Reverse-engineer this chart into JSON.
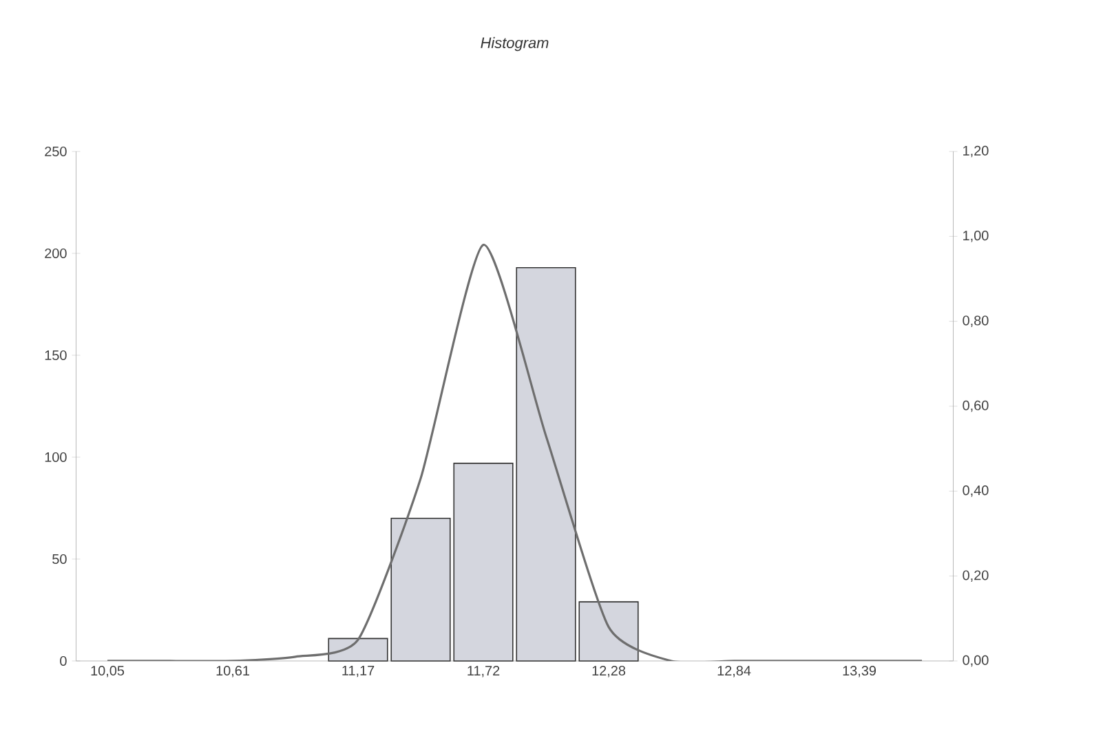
{
  "chart_data": {
    "type": "bar",
    "title": "*Histogram*",
    "categories": [
      "10,05",
      null,
      "10,61",
      null,
      "11,17",
      null,
      "11,72",
      null,
      "12,28",
      null,
      "12,84",
      null,
      "13,39",
      null
    ],
    "series": [
      {
        "color": "#d4d6de",
        "values": [
          null,
          null,
          null,
          null,
          11,
          70,
          97,
          193,
          29,
          null,
          null,
          null,
          null,
          null
        ]
      },
      {
        "type": "line",
        "axis": "y2",
        "color": "#6e6e6e",
        "values": [
          0,
          0,
          0,
          0.01,
          0.05,
          0.43,
          0.98,
          0.53,
          0.08,
          0,
          0,
          0,
          0,
          0
        ]
      }
    ],
    "ylim": [
      0,
      250
    ],
    "yticks": [
      0,
      50,
      100,
      150,
      200,
      250
    ],
    "y2lim": [
      0,
      1.2
    ],
    "y2ticks": [
      {
        "value": 0,
        "label": "0,00"
      },
      {
        "value": 0.2,
        "label": "0,20"
      },
      {
        "value": 0.4,
        "label": "0,40"
      },
      {
        "value": 0.6,
        "label": "0,60"
      },
      {
        "value": 0.8,
        "label": "0,80"
      },
      {
        "value": 1.0,
        "label": "1,00"
      },
      {
        "value": 1.2,
        "label": "1,20"
      }
    ],
    "grid": false
  }
}
